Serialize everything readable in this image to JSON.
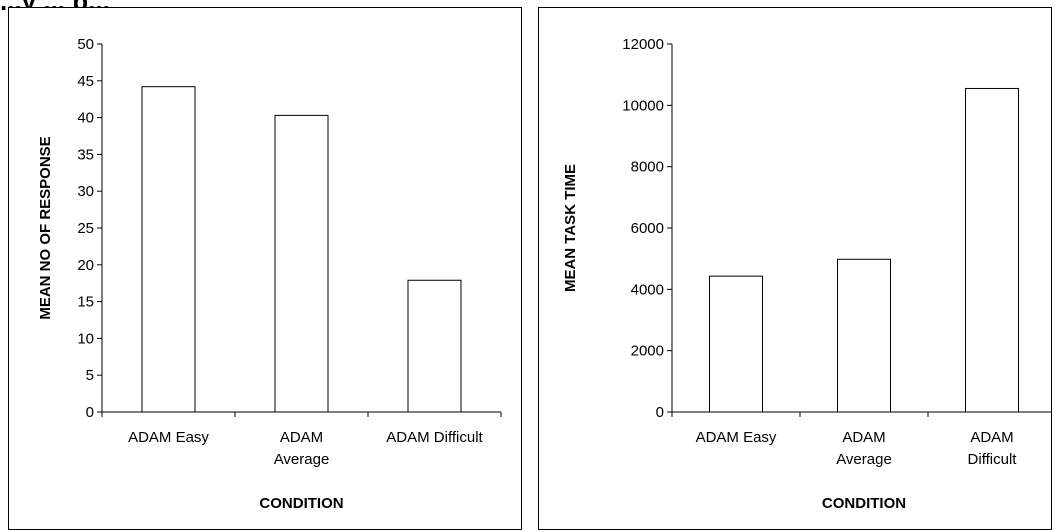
{
  "caption_fragment": "...y ... p...",
  "chart_data": [
    {
      "type": "bar",
      "categories": [
        [
          "ADAM Easy"
        ],
        [
          "ADAM",
          "Average"
        ],
        [
          "ADAM Difficult"
        ]
      ],
      "values": [
        44.2,
        40.3,
        17.9
      ],
      "title": "",
      "xlabel": "CONDITION",
      "ylabel": "MEAN NO OF RESPONSE",
      "ylim": [
        0,
        50
      ],
      "yticks": [
        "0",
        "5",
        "10",
        "15",
        "20",
        "25",
        "30",
        "35",
        "40",
        "45",
        "50"
      ],
      "grid": false,
      "legend": "none"
    },
    {
      "type": "bar",
      "categories": [
        [
          "ADAM Easy"
        ],
        [
          "ADAM",
          "Average"
        ],
        [
          "ADAM",
          "Difficult"
        ]
      ],
      "values": [
        4430,
        4980,
        10550
      ],
      "title": "",
      "xlabel": "CONDITION",
      "ylabel": "MEAN TASK TIME",
      "ylim": [
        0,
        12000
      ],
      "yticks": [
        "0",
        "2000",
        "4000",
        "6000",
        "8000",
        "10000",
        "12000"
      ],
      "grid": false,
      "legend": "none"
    }
  ],
  "colors": {
    "bar_fill": "#ffffff",
    "bar_stroke": "#000000",
    "axis": "#000000"
  }
}
